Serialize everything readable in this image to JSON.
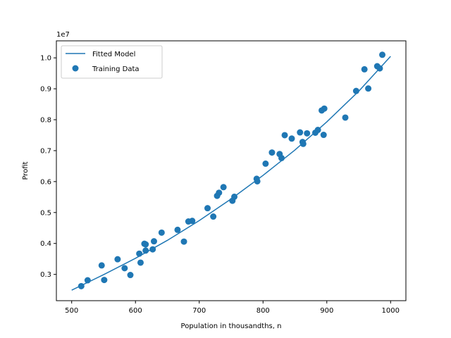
{
  "chart_data": {
    "type": "scatter",
    "xlabel": "Population in thousandths, n",
    "ylabel": "Profit",
    "y_offset_label": "1e7",
    "xlim": [
      476,
      1024
    ],
    "ylim": [
      2.15,
      10.55
    ],
    "x_ticks": [
      500,
      600,
      700,
      800,
      900,
      1000
    ],
    "x_tick_labels": [
      "500",
      "600",
      "700",
      "800",
      "900",
      "1000"
    ],
    "y_ticks": [
      3.0,
      4.0,
      5.0,
      6.0,
      7.0,
      8.0,
      9.0,
      10.0
    ],
    "y_tick_labels": [
      "0.3",
      "0.4",
      "0.5",
      "0.6",
      "0.7",
      "0.8",
      "0.9",
      "1.0"
    ],
    "grid": false,
    "legend_position": "upper-left",
    "series": [
      {
        "name": "Fitted Model",
        "kind": "line",
        "color": "#1f77b4",
        "x": [
          500,
          550,
          600,
          650,
          700,
          750,
          800,
          850,
          900,
          950,
          1000
        ],
        "y": [
          2.49,
          2.99,
          3.52,
          4.1,
          4.74,
          5.44,
          6.2,
          7.02,
          7.93,
          8.92,
          10.05
        ]
      },
      {
        "name": "Training Data",
        "kind": "scatter",
        "color": "#1f77b4",
        "x": [
          515,
          525,
          547,
          551,
          572,
          583,
          592,
          606,
          608,
          614,
          616,
          616,
          627,
          629,
          641,
          666,
          676,
          683,
          689,
          713,
          722,
          728,
          731,
          738,
          752,
          755,
          790,
          791,
          804,
          814,
          826,
          829,
          834,
          845,
          858,
          862,
          863,
          869,
          882,
          886,
          892,
          895,
          896,
          929,
          946,
          959,
          965,
          979,
          983,
          987
        ],
        "y": [
          2.62,
          2.81,
          3.29,
          2.82,
          3.49,
          3.2,
          2.98,
          3.67,
          3.38,
          3.99,
          3.77,
          3.97,
          3.81,
          4.07,
          4.35,
          4.44,
          4.06,
          4.71,
          4.73,
          5.14,
          4.87,
          5.54,
          5.64,
          5.82,
          5.38,
          5.51,
          6.09,
          6.01,
          6.58,
          6.94,
          6.89,
          6.76,
          7.5,
          7.39,
          7.59,
          7.28,
          7.22,
          7.56,
          7.58,
          7.67,
          8.3,
          7.51,
          8.36,
          8.07,
          8.93,
          9.63,
          9.01,
          9.73,
          9.66,
          10.1
        ]
      }
    ]
  }
}
